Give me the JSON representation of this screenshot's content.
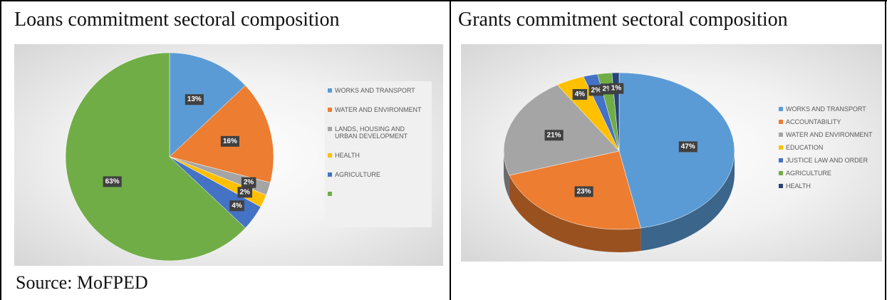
{
  "chart_data": [
    {
      "type": "pie",
      "title": "Loans commitment sectoral composition",
      "categories": [
        "WORKS AND TRANSPORT",
        "WATER AND ENVIRONMENT",
        "LANDS, HOUSING AND URBAN DEVELOPMENT",
        "HEALTH",
        "AGRICULTURE",
        null
      ],
      "values": [
        13,
        16,
        2,
        2,
        4,
        63
      ],
      "value_labels": [
        "13%",
        "16%",
        "2%",
        "2%",
        "4%",
        "63%"
      ],
      "colors": [
        "#5b9bd5",
        "#ed7d31",
        "#a5a5a5",
        "#ffc000",
        "#4472c4",
        "#70ad47"
      ],
      "legend": "right"
    },
    {
      "type": "pie3d",
      "title": "Grants commitment sectoral composition",
      "categories": [
        "WORKS AND TRANSPORT",
        "ACCOUNTABILITY",
        "WATER AND ENVIRONMENT",
        "EDUCATION",
        "JUSTICE LAW AND ORDER",
        "AGRICULTURE",
        "HEALTH"
      ],
      "values": [
        47,
        23,
        21,
        4,
        2,
        2,
        1
      ],
      "value_labels": [
        "47%",
        "23%",
        "21%",
        "4%",
        "2%",
        "2%",
        "1%"
      ],
      "colors": [
        "#5b9bd5",
        "#ed7d31",
        "#a5a5a5",
        "#ffc000",
        "#4472c4",
        "#70ad47",
        "#264478"
      ],
      "legend": "right"
    }
  ],
  "source": "Source: MoFPED"
}
